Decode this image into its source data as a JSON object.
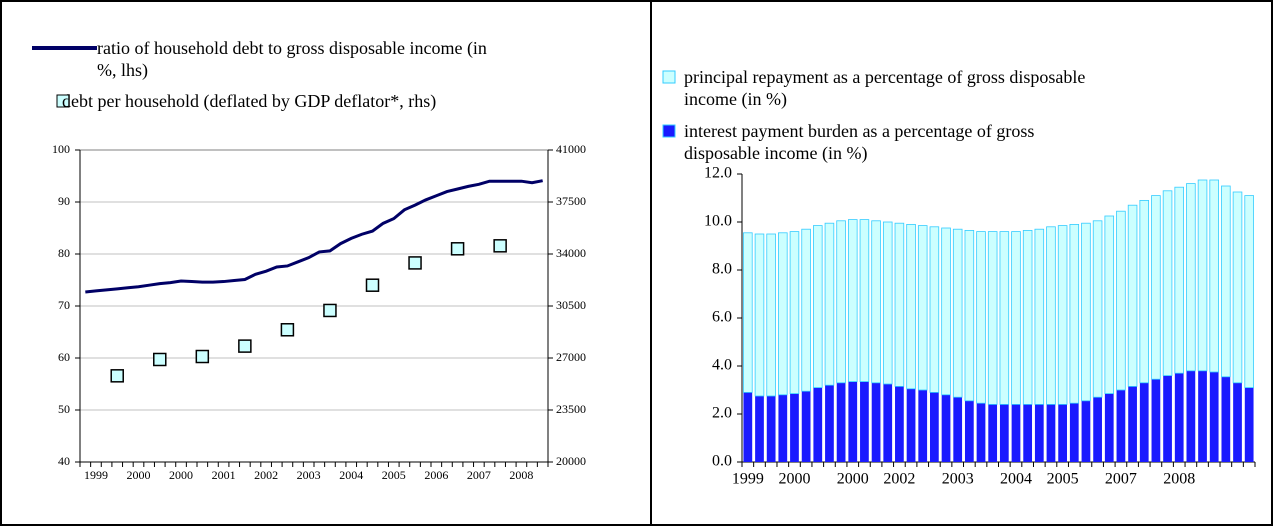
{
  "chart_data": [
    {
      "type": "line",
      "categories": [
        null,
        "1999",
        null,
        null,
        null,
        "2000",
        null,
        null,
        null,
        "2000",
        null,
        null,
        null,
        "2001",
        null,
        null,
        null,
        "2002",
        null,
        null,
        null,
        "2003",
        null,
        null,
        null,
        "2004",
        null,
        null,
        null,
        "2005",
        null,
        null,
        null,
        "2006",
        null,
        null,
        null,
        "2007",
        null,
        null,
        null,
        "2008",
        null,
        null
      ],
      "series": [
        {
          "name": "ratio of household debt to gross disposable income (in %, lhs)",
          "color": "#000066",
          "axis": "y",
          "values": [
            72.7,
            72.9,
            73.1,
            73.3,
            73.5,
            73.7,
            74.0,
            74.3,
            74.5,
            74.8,
            74.7,
            74.6,
            74.6,
            74.7,
            74.9,
            75.1,
            76.1,
            76.7,
            77.5,
            77.7,
            78.5,
            79.3,
            80.4,
            80.6,
            82.0,
            83.0,
            83.8,
            84.4,
            85.9,
            86.8,
            88.5,
            89.4,
            90.4,
            91.2,
            92.0,
            92.5,
            93.0,
            93.4,
            94.0,
            94.0,
            94.0,
            94.0,
            93.7,
            94.1
          ]
        },
        {
          "name": "debt per household (deflated by GDP deflator*, rhs)",
          "color": "#ccffff",
          "axis": "y2",
          "marker": "square",
          "values": [
            null,
            null,
            null,
            25800,
            null,
            null,
            null,
            26900,
            null,
            null,
            null,
            27100,
            null,
            null,
            null,
            27800,
            null,
            null,
            null,
            28900,
            null,
            null,
            null,
            30200,
            null,
            null,
            null,
            31900,
            null,
            null,
            null,
            33400,
            null,
            null,
            null,
            34350,
            null,
            null,
            null,
            34550,
            null,
            null,
            null,
            null
          ]
        }
      ],
      "ylim": [
        40,
        100
      ],
      "yticks": [
        40,
        50,
        60,
        70,
        80,
        90,
        100
      ],
      "y2lim": [
        20000,
        41000
      ],
      "y2ticks": [
        20000,
        23500,
        27000,
        30500,
        34000,
        37500,
        41000
      ],
      "grid": true
    },
    {
      "type": "bar",
      "stacked": true,
      "categories": [
        "1999",
        null,
        null,
        null,
        "2000",
        null,
        null,
        null,
        null,
        "2000",
        null,
        null,
        null,
        "2002",
        null,
        null,
        null,
        null,
        "2003",
        null,
        null,
        null,
        null,
        "2004",
        null,
        null,
        null,
        "2005",
        null,
        null,
        null,
        null,
        "2007",
        null,
        null,
        null,
        null,
        "2008",
        null,
        null,
        null,
        null,
        null,
        null
      ],
      "series": [
        {
          "name": "interest payment burden as a percentage of gross disposable income (in %)",
          "color": "#1a1aff",
          "values": [
            2.9,
            2.75,
            2.75,
            2.8,
            2.85,
            2.95,
            3.1,
            3.2,
            3.3,
            3.35,
            3.35,
            3.3,
            3.25,
            3.15,
            3.05,
            3.0,
            2.9,
            2.8,
            2.7,
            2.55,
            2.45,
            2.4,
            2.4,
            2.4,
            2.4,
            2.4,
            2.4,
            2.4,
            2.45,
            2.55,
            2.7,
            2.85,
            3.0,
            3.15,
            3.3,
            3.45,
            3.6,
            3.7,
            3.8,
            3.8,
            3.75,
            3.55,
            3.3,
            3.1
          ]
        },
        {
          "name": "principal repayment as a percentage of gross disposable income (in %)",
          "color": "#ccffff",
          "values": [
            6.65,
            6.75,
            6.75,
            6.75,
            6.75,
            6.75,
            6.75,
            6.75,
            6.75,
            6.75,
            6.75,
            6.75,
            6.75,
            6.8,
            6.85,
            6.85,
            6.9,
            6.95,
            7.0,
            7.1,
            7.15,
            7.2,
            7.2,
            7.2,
            7.25,
            7.3,
            7.4,
            7.45,
            7.45,
            7.4,
            7.35,
            7.4,
            7.45,
            7.55,
            7.6,
            7.65,
            7.7,
            7.75,
            7.8,
            7.95,
            8.0,
            7.95,
            7.95,
            8.0
          ]
        }
      ],
      "ylim": [
        0,
        12
      ],
      "yticks": [
        {
          "value": 0,
          "label": "0.0"
        },
        {
          "value": 2,
          "label": "2.0"
        },
        {
          "value": 4,
          "label": "4.0"
        },
        {
          "value": 6,
          "label": "6.0"
        },
        {
          "value": 8,
          "label": "8.0"
        },
        {
          "value": 10,
          "label": "10.0"
        },
        {
          "value": 12,
          "label": "12.0"
        }
      ],
      "grid": false
    }
  ]
}
